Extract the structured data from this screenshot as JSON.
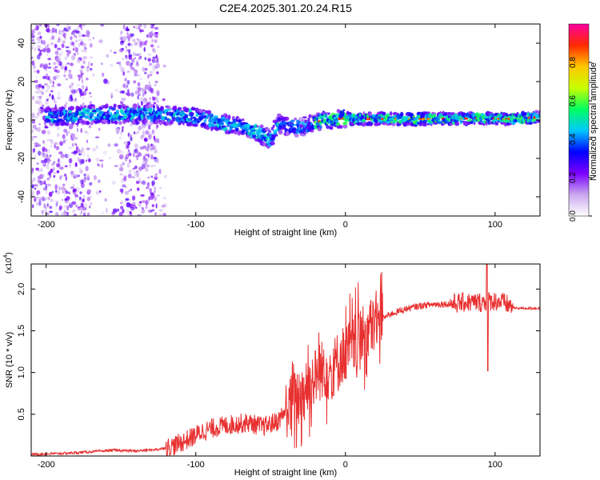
{
  "title": "C2E4.2025.301.20.24.R15",
  "chart_data": [
    {
      "type": "heatmap",
      "name": "spectrogram",
      "xlabel": "Height of straight line (km)",
      "ylabel": "Frequency (Hz)",
      "xlim": [
        -210,
        130
      ],
      "ylim": [
        -50,
        50
      ],
      "xticks": [
        "-200",
        "-100",
        "0",
        "100"
      ],
      "xtick_values": [
        -200,
        -100,
        0,
        100
      ],
      "yticks": [
        "40",
        "20",
        "0",
        "-20",
        "-40"
      ],
      "ytick_values": [
        40,
        20,
        0,
        -20,
        -40
      ],
      "colorbar": {
        "label": "Normalized spectral amplitude",
        "ticks": [
          "0.0",
          "0.2",
          "0.4",
          "0.6",
          "0.8"
        ],
        "tick_values": [
          0.0,
          0.2,
          0.4,
          0.6,
          0.8
        ],
        "range": [
          0,
          1
        ],
        "colors": [
          "#ffffff",
          "#c9a8ee",
          "#7b00ff",
          "#0000ff",
          "#00c8ff",
          "#00ff60",
          "#c8ff00",
          "#ffc800",
          "#ff2a00",
          "#ff00a0"
        ]
      },
      "signal_track": {
        "x": [
          -200,
          -180,
          -160,
          -140,
          -120,
          -100,
          -90,
          -80,
          -70,
          -60,
          -55,
          -50,
          -45,
          -40,
          -30,
          -20,
          -10,
          0,
          10,
          30,
          60,
          90,
          110,
          130
        ],
        "frequency_hz": [
          1.5,
          2.5,
          3,
          3,
          2.5,
          1.5,
          0,
          -2,
          -3,
          -6,
          -8,
          -10,
          -2,
          -3,
          -4,
          -1,
          0,
          1,
          0.5,
          0.5,
          0.5,
          1,
          0.5,
          1.5
        ]
      }
    },
    {
      "type": "line",
      "name": "snr",
      "xlabel": "Height of straight line (km)",
      "ylabel": "SNR (10 * v/v)",
      "multiplier": "(x10",
      "multiplier_exp": "4",
      "xlim": [
        -210,
        130
      ],
      "ylim": [
        0,
        2.3
      ],
      "xticks": [
        "-200",
        "-100",
        "0",
        "100"
      ],
      "xtick_values": [
        -200,
        -100,
        0,
        100
      ],
      "yticks": [
        "0.5",
        "1.0",
        "1.5",
        "2.0"
      ],
      "ytick_values": [
        0.5,
        1.0,
        1.5,
        2.0
      ],
      "line_color": "#e83030",
      "series": [
        {
          "name": "SNR",
          "x": [
            -210,
            -190,
            -170,
            -155,
            -140,
            -125,
            -115,
            -105,
            -95,
            -85,
            -75,
            -65,
            -55,
            -45,
            -40,
            -35,
            -30,
            -25,
            -20,
            -15,
            -10,
            -5,
            0,
            5,
            10,
            15,
            20,
            25,
            30,
            40,
            50,
            60,
            70,
            80,
            90,
            95,
            100,
            105,
            110,
            113,
            120,
            130
          ],
          "values": [
            0.02,
            0.03,
            0.05,
            0.07,
            0.06,
            0.08,
            0.12,
            0.2,
            0.3,
            0.35,
            0.38,
            0.4,
            0.35,
            0.42,
            0.55,
            0.65,
            0.75,
            0.85,
            0.95,
            1.05,
            1.0,
            1.15,
            1.25,
            1.3,
            1.4,
            1.5,
            1.6,
            1.65,
            1.7,
            1.76,
            1.8,
            1.82,
            1.82,
            1.84,
            1.84,
            1.85,
            1.86,
            1.84,
            1.8,
            1.77,
            1.77,
            1.77
          ]
        }
      ]
    }
  ]
}
